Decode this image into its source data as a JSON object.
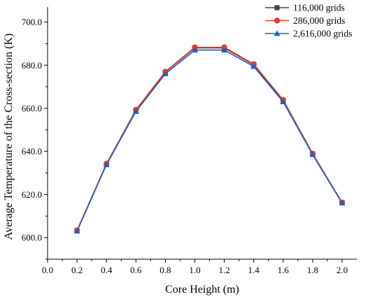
{
  "chart_data": {
    "type": "line",
    "title": "",
    "xlabel": "Core Height (m)",
    "ylabel": "Average Temperature of the Cross-section (K)",
    "xlim": [
      0.0,
      2.1
    ],
    "ylim": [
      590.0,
      707.0
    ],
    "xticks": [
      "0.0",
      "0.2",
      "0.4",
      "0.6",
      "0.8",
      "1.0",
      "1.2",
      "1.4",
      "1.6",
      "1.8",
      "2.0"
    ],
    "yticks": [
      "600.0",
      "620.0",
      "640.0",
      "660.0",
      "680.0",
      "700.0"
    ],
    "x": [
      0.2,
      0.4,
      0.6,
      0.8,
      1.0,
      1.2,
      1.4,
      1.6,
      1.8,
      2.0
    ],
    "grid": false,
    "legend_position": "top-right",
    "series": [
      {
        "name": "116,000 grids",
        "color": "#444444",
        "marker": "square",
        "values": [
          603.2,
          634.0,
          659.0,
          676.8,
          688.0,
          688.0,
          680.2,
          663.6,
          638.8,
          616.2
        ]
      },
      {
        "name": "286,000 grids",
        "color": "#e03c31",
        "marker": "circle",
        "values": [
          603.4,
          634.3,
          659.3,
          677.0,
          688.3,
          688.3,
          680.5,
          663.9,
          639.0,
          616.3
        ]
      },
      {
        "name": "2,616,000 grids",
        "color": "#1f5fbf",
        "marker": "triangle",
        "values": [
          603.0,
          633.8,
          658.5,
          676.0,
          687.0,
          687.0,
          679.4,
          663.0,
          638.5,
          616.0
        ]
      }
    ]
  }
}
